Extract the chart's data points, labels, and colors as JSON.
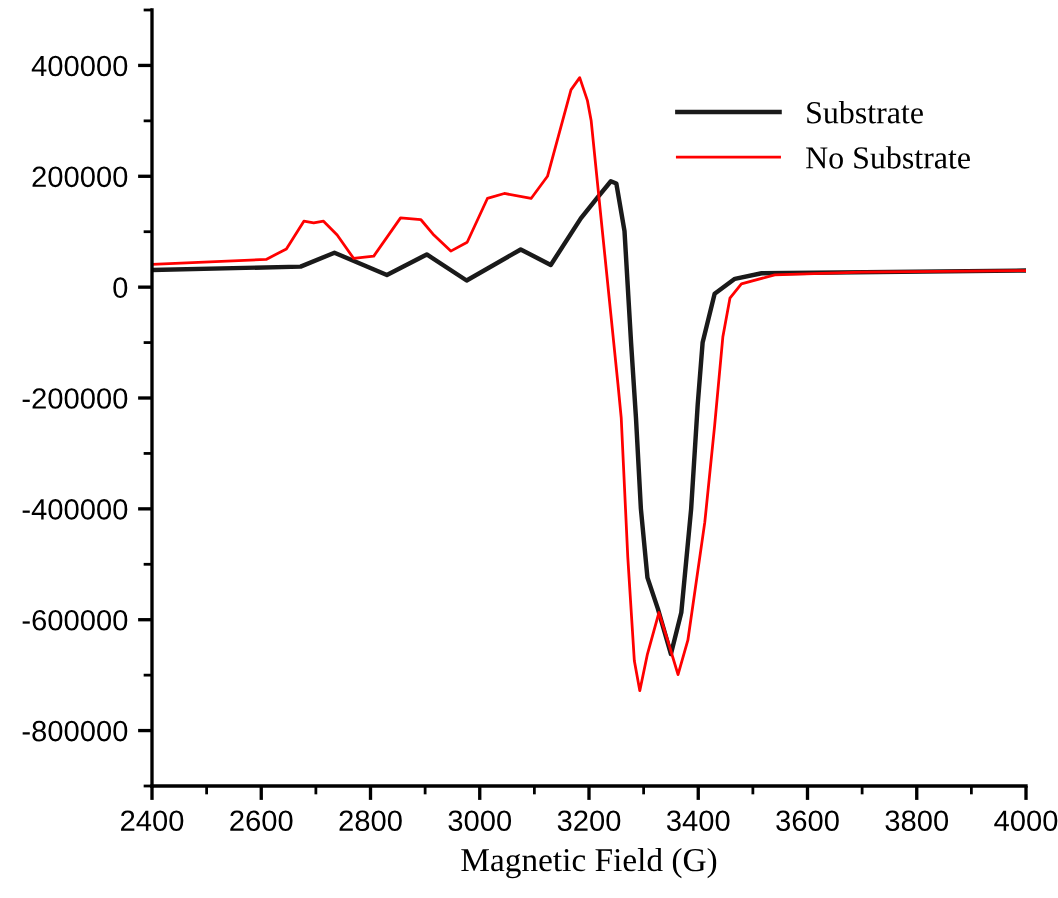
{
  "chart_data": {
    "type": "line",
    "xlabel": "Magnetic Field (G)",
    "xlim": [
      2400,
      4000
    ],
    "xticks": [
      2400,
      2600,
      2800,
      3000,
      3200,
      3400,
      3600,
      3800,
      4000
    ],
    "ylim": [
      -900000,
      500000
    ],
    "yticks": [
      -800000,
      -600000,
      -400000,
      -200000,
      0,
      200000,
      400000
    ],
    "grid": false,
    "legend": "top right",
    "marker": "none",
    "line_style": "solid",
    "series": [
      {
        "name": "Substrate",
        "color": "#1a1a1a",
        "x": [
          2400,
          2672,
          2734,
          2830,
          2903,
          2976,
          3075,
          3130,
          3185,
          3215,
          3240,
          3250,
          3265,
          3277,
          3286,
          3295,
          3307,
          3326,
          3350,
          3369,
          3387,
          3399,
          3408,
          3430,
          3467,
          3516,
          4000
        ],
        "values": [
          31000,
          37000,
          62000,
          22000,
          59000,
          12000,
          68000,
          40000,
          124000,
          161000,
          191000,
          187000,
          101000,
          -100000,
          -236000,
          -400000,
          -524000,
          -580000,
          -662000,
          -587000,
          -400000,
          -212000,
          -100000,
          -12000,
          15000,
          25000,
          30000
        ]
      },
      {
        "name": "No Substrate",
        "color": "#ff0000",
        "x": [
          2400,
          2609,
          2646,
          2678,
          2696,
          2714,
          2739,
          2769,
          2806,
          2855,
          2892,
          2916,
          2947,
          2977,
          3014,
          3045,
          3094,
          3124,
          3167,
          3183,
          3197,
          3204,
          3222,
          3240,
          3253,
          3259,
          3271,
          3283,
          3293,
          3307,
          3328,
          3344,
          3363,
          3381,
          3412,
          3430,
          3445,
          3458,
          3479,
          3540,
          3699,
          4000
        ],
        "values": [
          41000,
          50000,
          69000,
          119000,
          116000,
          119000,
          94000,
          52000,
          56000,
          125000,
          122000,
          94000,
          65000,
          81000,
          160000,
          169000,
          160000,
          200000,
          356000,
          378000,
          337000,
          300000,
          125000,
          -49000,
          -175000,
          -236000,
          -487000,
          -674000,
          -728000,
          -662000,
          -587000,
          -637000,
          -699000,
          -637000,
          -424000,
          -250000,
          -90000,
          -20000,
          6000,
          22000,
          27000,
          30000
        ]
      }
    ]
  }
}
